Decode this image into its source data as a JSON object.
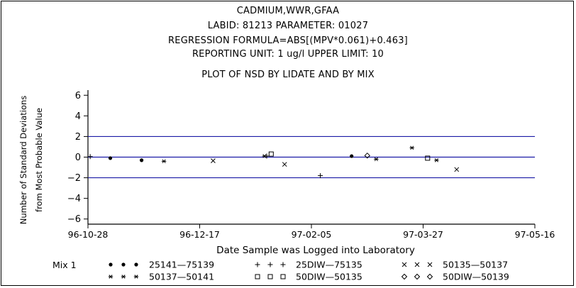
{
  "header": {
    "line1": "CADMIUM,WWR,GFAA",
    "line2": "LABID: 81213 PARAMETER: 01027",
    "line3": "REGRESSION FORMULA=ABS[(MPV*0.061)+0.463]",
    "line4": "REPORTING UNIT: 1 ug/l   UPPER LIMIT: 10",
    "subtitle": "PLOT OF NSD BY LIDATE AND BY MIX"
  },
  "colors": {
    "axis": "#000000",
    "reference_lines": "#1a1aa6",
    "marker": "#000000"
  },
  "chart_data": {
    "type": "scatter",
    "title": "PLOT OF NSD BY LIDATE AND BY MIX",
    "xlabel": "Date Sample was Logged into Laboratory",
    "ylabel": [
      "Number of Standard Deviations",
      "from Most Probable Value"
    ],
    "x_ticks": [
      "96-10-28",
      "96-12-17",
      "97-02-05",
      "97-03-27",
      "97-05-16"
    ],
    "xlim": [
      "96-10-28",
      "97-05-16"
    ],
    "ylim": [
      -6.5,
      6.5
    ],
    "y_ticks": [
      6,
      4,
      2,
      0,
      -2,
      -4,
      -6
    ],
    "y_tick_labels": [
      "6",
      "4",
      "2",
      "0",
      "−2",
      "−4",
      "−6"
    ],
    "reference_lines": [
      2,
      0,
      -2
    ],
    "legend": {
      "title": "Mix 1",
      "placement": "bottom"
    },
    "series": [
      {
        "name": "25141—75139",
        "marker": "dot",
        "legend_symbol": "● ● ●",
        "points": [
          {
            "x": "96-11-07",
            "y": -0.1
          },
          {
            "x": "96-11-21",
            "y": -0.3
          },
          {
            "x": "97-02-23",
            "y": 0.1
          }
        ]
      },
      {
        "name": "25DIW—75135",
        "marker": "plus",
        "legend_symbol": "+ + +",
        "points": [
          {
            "x": "96-10-29",
            "y": 0.05
          },
          {
            "x": "97-01-16",
            "y": 0.1
          },
          {
            "x": "97-02-09",
            "y": -1.8
          }
        ]
      },
      {
        "name": "50135—50137",
        "marker": "x",
        "legend_symbol": "× × ×",
        "points": [
          {
            "x": "96-12-23",
            "y": -0.35
          },
          {
            "x": "97-01-24",
            "y": -0.7
          },
          {
            "x": "97-04-11",
            "y": -1.2
          }
        ]
      },
      {
        "name": "50137—50141",
        "marker": "star",
        "legend_symbol": "* * *",
        "points": [
          {
            "x": "96-12-01",
            "y": -0.4
          },
          {
            "x": "97-01-15",
            "y": 0.1
          },
          {
            "x": "97-03-06",
            "y": -0.2
          },
          {
            "x": "97-03-22",
            "y": 0.9
          },
          {
            "x": "97-04-02",
            "y": -0.3
          }
        ]
      },
      {
        "name": "50DIW—50135",
        "marker": "square",
        "legend_symbol": "□ □ □",
        "points": [
          {
            "x": "97-01-18",
            "y": 0.3
          },
          {
            "x": "97-03-29",
            "y": -0.1
          }
        ]
      },
      {
        "name": "50DIW—50139",
        "marker": "diamond",
        "legend_symbol": "◇ ◇ ◇",
        "points": [
          {
            "x": "97-03-02",
            "y": 0.15
          }
        ]
      }
    ]
  }
}
